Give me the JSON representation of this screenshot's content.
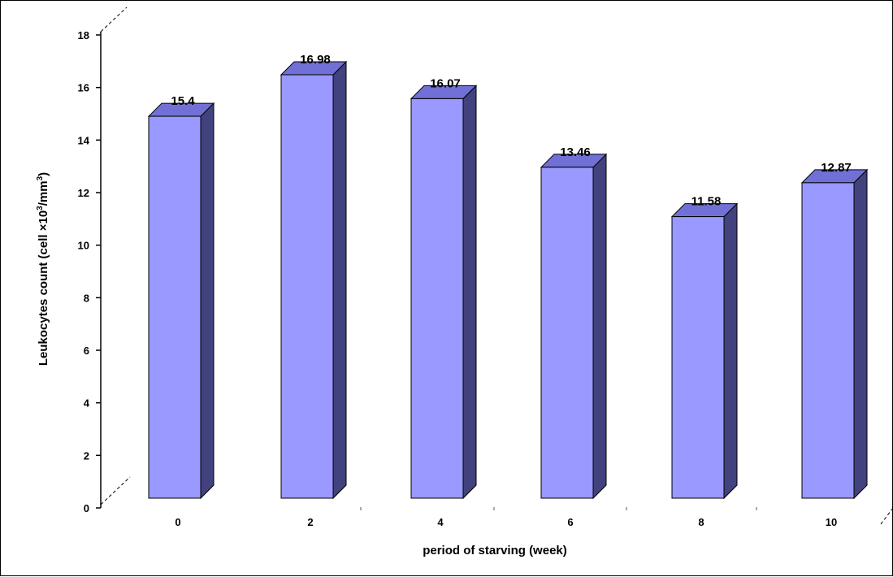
{
  "chart_data": {
    "type": "bar",
    "categories": [
      "0",
      "2",
      "4",
      "6",
      "8",
      "10"
    ],
    "values": [
      15.4,
      16.98,
      16.07,
      13.46,
      11.58,
      12.87
    ],
    "value_labels": [
      "15.4",
      "16.98",
      "16.07",
      "13.46",
      "11.58",
      "12.87"
    ],
    "xlabel": "period of starving (week)",
    "ylabel_parts": {
      "prefix": "Leukocytes count (cell ×10",
      "superscript_1": "3",
      "middle": "/mm",
      "superscript_2": "3",
      "suffix": ")"
    },
    "ylim": [
      0,
      18
    ],
    "yticks": [
      "0",
      "2",
      "4",
      "6",
      "8",
      "10",
      "12",
      "14",
      "16",
      "18"
    ],
    "grid": false,
    "style": "3d-bar",
    "colors": {
      "bar_front": "#9999ff",
      "bar_top": "#7070d6",
      "bar_side": "#42427e",
      "axis": "#000000"
    }
  }
}
